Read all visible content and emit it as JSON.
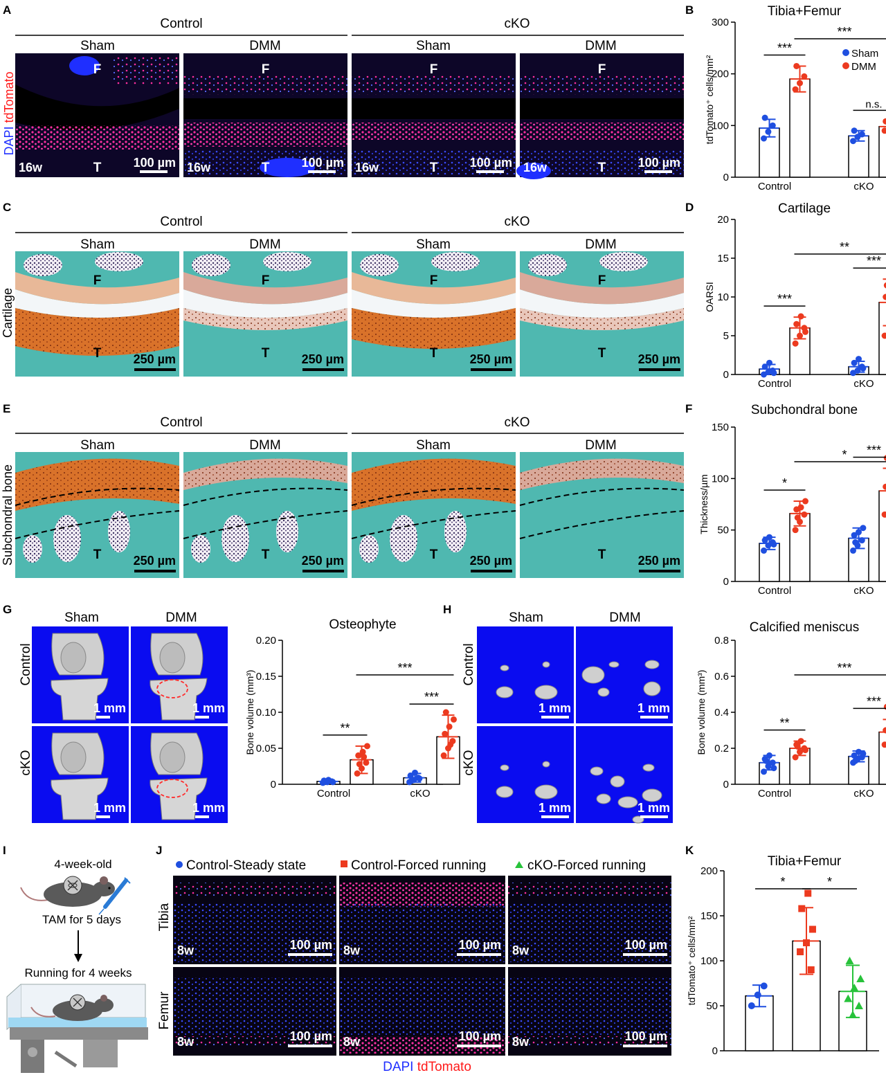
{
  "panels": {
    "A": {
      "letter": "A",
      "groups": [
        "Control",
        "cKO"
      ],
      "cols": [
        "Sham",
        "DMM",
        "Sham",
        "DMM"
      ],
      "side_label_blue": "DAPI",
      "side_label_red": "tdTomato",
      "age": "16w",
      "scale": "100 µm",
      "top": "F",
      "bottom": "T"
    },
    "C": {
      "letter": "C",
      "groups": [
        "Control",
        "cKO"
      ],
      "cols": [
        "Sham",
        "DMM",
        "Sham",
        "DMM"
      ],
      "side_label": "Cartilage",
      "scale": "250 µm",
      "top": "F",
      "bottom": "T"
    },
    "E": {
      "letter": "E",
      "groups": [
        "Control",
        "cKO"
      ],
      "cols": [
        "Sham",
        "DMM",
        "Sham",
        "DMM"
      ],
      "side_label": "Subchondral bone",
      "scale": "250 µm",
      "bottom": "T"
    },
    "G": {
      "letter": "G",
      "cols": [
        "Sham",
        "DMM"
      ],
      "rows": [
        "Control",
        "cKO"
      ],
      "scale": "1 mm"
    },
    "H": {
      "letter": "H",
      "cols": [
        "Sham",
        "DMM"
      ],
      "rows": [
        "Control",
        "cKO"
      ],
      "scale": "1 mm"
    },
    "I": {
      "letter": "I",
      "age": "4-week-old",
      "tam": "TAM for 5 days",
      "running": "Running for 4 weeks"
    },
    "J": {
      "letter": "J",
      "legend": [
        "Control-Steady state",
        "Control-Forced running",
        "cKO-Forced running"
      ],
      "rows": [
        "Tibia",
        "Femur"
      ],
      "age": "8w",
      "scale": "100 µm",
      "bottom_blue": "DAPI",
      "bottom_red": "tdTomato"
    }
  },
  "colors": {
    "sham": "#1f4fe0",
    "dmm": "#ec3a1f",
    "cko_run": "#27c23a",
    "safranin": "#d9722a",
    "fast_green": "#4fb8b0",
    "micro_ct_bg": "#0a0cf0",
    "fluor_bg": "#0d0628"
  },
  "chart_data": [
    {
      "id": "B",
      "letter": "B",
      "type": "bar",
      "title": "Tibia+Femur",
      "ylabel": "tdTomato⁺ cells/mm²",
      "ylim": [
        0,
        300
      ],
      "yticks": [
        "0",
        "100",
        "200",
        "300"
      ],
      "categories": [
        "Control",
        "cKO"
      ],
      "legend": [
        "Sham",
        "DMM"
      ],
      "series": [
        {
          "name": "Sham",
          "values": [
            95,
            80
          ],
          "sd": [
            17,
            10
          ],
          "points": [
            [
              75,
              88,
              100,
              115
            ],
            [
              70,
              78,
              83,
              90
            ]
          ]
        },
        {
          "name": "DMM",
          "values": [
            190,
            98
          ],
          "sd": [
            25,
            10
          ],
          "points": [
            [
              170,
              182,
              195,
              215
            ],
            [
              90,
              96,
              102,
              108
            ]
          ]
        }
      ],
      "sig": [
        {
          "label": "***",
          "a": [
            0,
            0
          ],
          "b": [
            0,
            1
          ],
          "level": "low"
        },
        {
          "label": "***",
          "a": [
            0,
            1
          ],
          "b": [
            1,
            1
          ],
          "level": "low"
        },
        {
          "label": "n.s.",
          "a": [
            1,
            0
          ],
          "b": [
            1,
            1
          ],
          "level": "low"
        }
      ]
    },
    {
      "id": "D",
      "letter": "D",
      "type": "bar",
      "title": "Cartilage",
      "ylabel": "OARSI",
      "ylim": [
        0,
        20
      ],
      "yticks": [
        "0",
        "5",
        "10",
        "15",
        "20"
      ],
      "categories": [
        "Control",
        "cKO"
      ],
      "series": [
        {
          "name": "Sham",
          "values": [
            0.7,
            1.0
          ],
          "sd": [
            0.6,
            0.7
          ],
          "points": [
            [
              0,
              0.3,
              0.5,
              1,
              1.5,
              0.2
            ],
            [
              0.2,
              0.5,
              1.0,
              1.5,
              2.0,
              0.8
            ]
          ]
        },
        {
          "name": "DMM",
          "values": [
            6.0,
            9.3
          ],
          "sd": [
            1.4,
            3.0
          ],
          "points": [
            [
              4,
              5,
              6,
              6.5,
              7.5,
              5.5
            ],
            [
              5,
              7,
              8.5,
              10,
              11,
              12,
              11.5
            ]
          ]
        }
      ],
      "sig": [
        {
          "label": "***",
          "a": [
            0,
            0
          ],
          "b": [
            0,
            1
          ],
          "level": "low"
        },
        {
          "label": "***",
          "a": [
            1,
            0
          ],
          "b": [
            1,
            1
          ],
          "level": "low"
        },
        {
          "label": "**",
          "a": [
            0,
            1
          ],
          "b": [
            1,
            1
          ],
          "level": "high"
        }
      ]
    },
    {
      "id": "F",
      "letter": "F",
      "type": "bar",
      "title": "Subchondral bone",
      "ylabel": "Thickness/µm",
      "ylim": [
        0,
        150
      ],
      "yticks": [
        "0",
        "50",
        "100",
        "150"
      ],
      "categories": [
        "Control",
        "cKO"
      ],
      "series": [
        {
          "name": "Sham",
          "values": [
            37,
            42
          ],
          "sd": [
            6,
            10
          ],
          "points": [
            [
              30,
              35,
              38,
              40,
              43,
              36
            ],
            [
              30,
              35,
              40,
              45,
              48,
              52,
              38
            ]
          ]
        },
        {
          "name": "DMM",
          "values": [
            66,
            88
          ],
          "sd": [
            12,
            22
          ],
          "points": [
            [
              50,
              58,
              65,
              70,
              72,
              78,
              62
            ],
            [
              65,
              75,
              85,
              92,
              100,
              110,
              120,
              80
            ]
          ]
        }
      ],
      "sig": [
        {
          "label": "*",
          "a": [
            0,
            0
          ],
          "b": [
            0,
            1
          ],
          "level": "low"
        },
        {
          "label": "***",
          "a": [
            1,
            0
          ],
          "b": [
            1,
            1
          ],
          "level": "low"
        },
        {
          "label": "*",
          "a": [
            0,
            1
          ],
          "b": [
            1,
            1
          ],
          "level": "high"
        }
      ]
    },
    {
      "id": "G",
      "letter": "",
      "type": "bar",
      "title": "Osteophyte",
      "ylabel": "Bone volume (mm³)",
      "ylim": [
        0,
        0.2
      ],
      "yticks": [
        "0",
        "0.05",
        "0.10",
        "0.15",
        "0.20"
      ],
      "categories": [
        "Control",
        "cKO"
      ],
      "series": [
        {
          "name": "Sham",
          "values": [
            0.004,
            0.009
          ],
          "sd": [
            0.002,
            0.006
          ],
          "points": [
            [
              0.002,
              0.003,
              0.004,
              0.005,
              0.006,
              0.003
            ],
            [
              0.003,
              0.006,
              0.009,
              0.012,
              0.016,
              0.008,
              0.005
            ]
          ]
        },
        {
          "name": "DMM",
          "values": [
            0.034,
            0.066
          ],
          "sd": [
            0.019,
            0.03
          ],
          "points": [
            [
              0.015,
              0.022,
              0.03,
              0.04,
              0.045,
              0.053,
              0.028,
              0.038
            ],
            [
              0.04,
              0.05,
              0.06,
              0.07,
              0.08,
              0.09,
              0.1,
              0.055
            ]
          ]
        }
      ],
      "sig": [
        {
          "label": "**",
          "a": [
            0,
            0
          ],
          "b": [
            0,
            1
          ],
          "level": "low"
        },
        {
          "label": "***",
          "a": [
            1,
            0
          ],
          "b": [
            1,
            1
          ],
          "level": "low"
        },
        {
          "label": "***",
          "a": [
            0,
            1
          ],
          "b": [
            1,
            1
          ],
          "level": "high"
        }
      ]
    },
    {
      "id": "H",
      "letter": "",
      "type": "bar",
      "title": "Calcified meniscus",
      "ylabel": "Bone volume (mm³)",
      "ylim": [
        0,
        0.8
      ],
      "yticks": [
        "0",
        "0.2",
        "0.4",
        "0.6",
        "0.8"
      ],
      "categories": [
        "Control",
        "cKO"
      ],
      "series": [
        {
          "name": "Sham",
          "values": [
            0.12,
            0.155
          ],
          "sd": [
            0.04,
            0.03
          ],
          "points": [
            [
              0.07,
              0.1,
              0.12,
              0.14,
              0.16,
              0.09,
              0.13
            ],
            [
              0.12,
              0.14,
              0.15,
              0.16,
              0.18,
              0.17,
              0.13
            ]
          ]
        },
        {
          "name": "DMM",
          "values": [
            0.2,
            0.29
          ],
          "sd": [
            0.04,
            0.07
          ],
          "points": [
            [
              0.15,
              0.18,
              0.2,
              0.22,
              0.24,
              0.19,
              0.21
            ],
            [
              0.22,
              0.25,
              0.28,
              0.3,
              0.34,
              0.38,
              0.43,
              0.26
            ]
          ]
        }
      ],
      "sig": [
        {
          "label": "**",
          "a": [
            0,
            0
          ],
          "b": [
            0,
            1
          ],
          "level": "low"
        },
        {
          "label": "***",
          "a": [
            1,
            0
          ],
          "b": [
            1,
            1
          ],
          "level": "low"
        },
        {
          "label": "***",
          "a": [
            0,
            1
          ],
          "b": [
            1,
            1
          ],
          "level": "high"
        }
      ]
    },
    {
      "id": "K",
      "letter": "K",
      "type": "bar",
      "title": "Tibia+Femur",
      "ylabel": "tdTomato⁺ cells/mm²",
      "ylim": [
        0,
        200
      ],
      "yticks": [
        "0",
        "50",
        "100",
        "150",
        "200"
      ],
      "categories": [
        "Control-Steady state",
        "Control-Forced running",
        "cKO-Forced running"
      ],
      "values": [
        61,
        122,
        66
      ],
      "sd": [
        12,
        37,
        29
      ],
      "points": [
        [
          50,
          62,
          72
        ],
        [
          90,
          110,
          120,
          135,
          158,
          175
        ],
        [
          40,
          50,
          58,
          70,
          80,
          100
        ]
      ],
      "sig": [
        {
          "label": "*",
          "a": 0,
          "b": 1
        },
        {
          "label": "*",
          "a": 1,
          "b": 2
        }
      ]
    }
  ]
}
